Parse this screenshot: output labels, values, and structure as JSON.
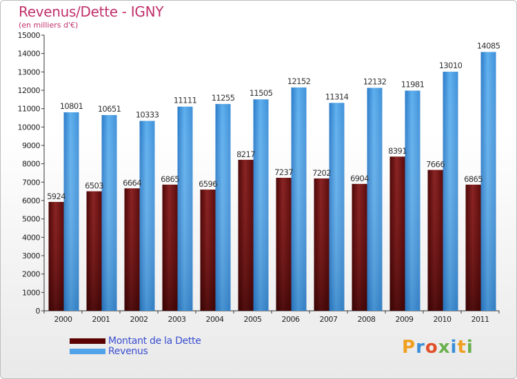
{
  "title": "Revenus/Dette - IGNY",
  "subtitle": "(en milliers d'€)",
  "chart_data": {
    "type": "bar",
    "categories": [
      "2000",
      "2001",
      "2002",
      "2003",
      "2004",
      "2005",
      "2006",
      "2007",
      "2008",
      "2009",
      "2010",
      "2011"
    ],
    "series": [
      {
        "name": "Montant de la Dette",
        "color": "#7a1a1a",
        "values": [
          5924,
          6503,
          6664,
          6865,
          6596,
          8217,
          7237,
          7202,
          6904,
          8391,
          7666,
          6865
        ]
      },
      {
        "name": "Revenus",
        "color": "#4fa3e6",
        "values": [
          10801,
          10651,
          10333,
          11111,
          11255,
          11505,
          12152,
          11314,
          12132,
          11981,
          13010,
          14085
        ]
      }
    ],
    "ylim": [
      0,
      15000
    ],
    "yticks": [
      0,
      1000,
      2000,
      3000,
      4000,
      5000,
      6000,
      7000,
      8000,
      9000,
      10000,
      11000,
      12000,
      13000,
      14000,
      15000
    ],
    "grid": false,
    "legend_position": "bottom-left"
  },
  "legend": {
    "items": [
      {
        "label": "Montant de la Dette",
        "color": "#7a1a1a"
      },
      {
        "label": "Revenus",
        "color": "#4fa3e6"
      }
    ]
  },
  "logo": {
    "text": "Proxiti",
    "colors": [
      "#f0a020",
      "#3a8fd8",
      "#e0502a",
      "#6ab04c",
      "#3a8fd8",
      "#f0a020",
      "#6ab04c"
    ]
  }
}
